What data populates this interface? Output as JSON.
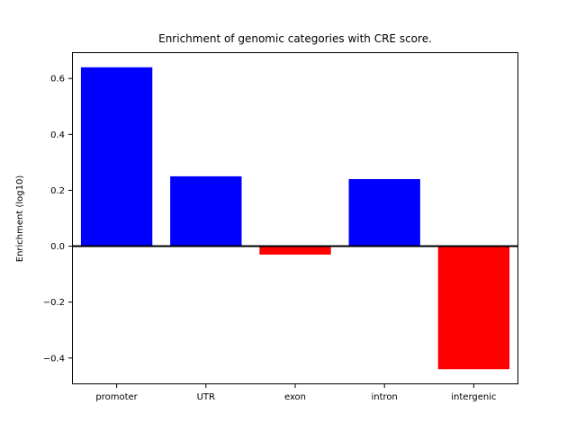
{
  "chart_data": {
    "type": "bar",
    "title": "Enrichment of genomic categories with CRE score.",
    "xlabel": "",
    "ylabel": "Enrichment (log10)",
    "categories": [
      "promoter",
      "UTR",
      "exon",
      "intron",
      "intergenic"
    ],
    "values": [
      0.64,
      0.25,
      -0.03,
      0.24,
      -0.44
    ],
    "ylim": [
      -0.494,
      0.694
    ],
    "yticks": [
      -0.4,
      -0.2,
      0.0,
      0.2,
      0.4,
      0.6
    ],
    "bar_width_fraction": 0.8,
    "positive_color": "#0000ff",
    "negative_color": "#ff0000",
    "zero_line": true,
    "grid": false,
    "legend": "none"
  },
  "colors": {
    "background": "#ffffff",
    "axis": "#000000",
    "text": "#000000"
  }
}
